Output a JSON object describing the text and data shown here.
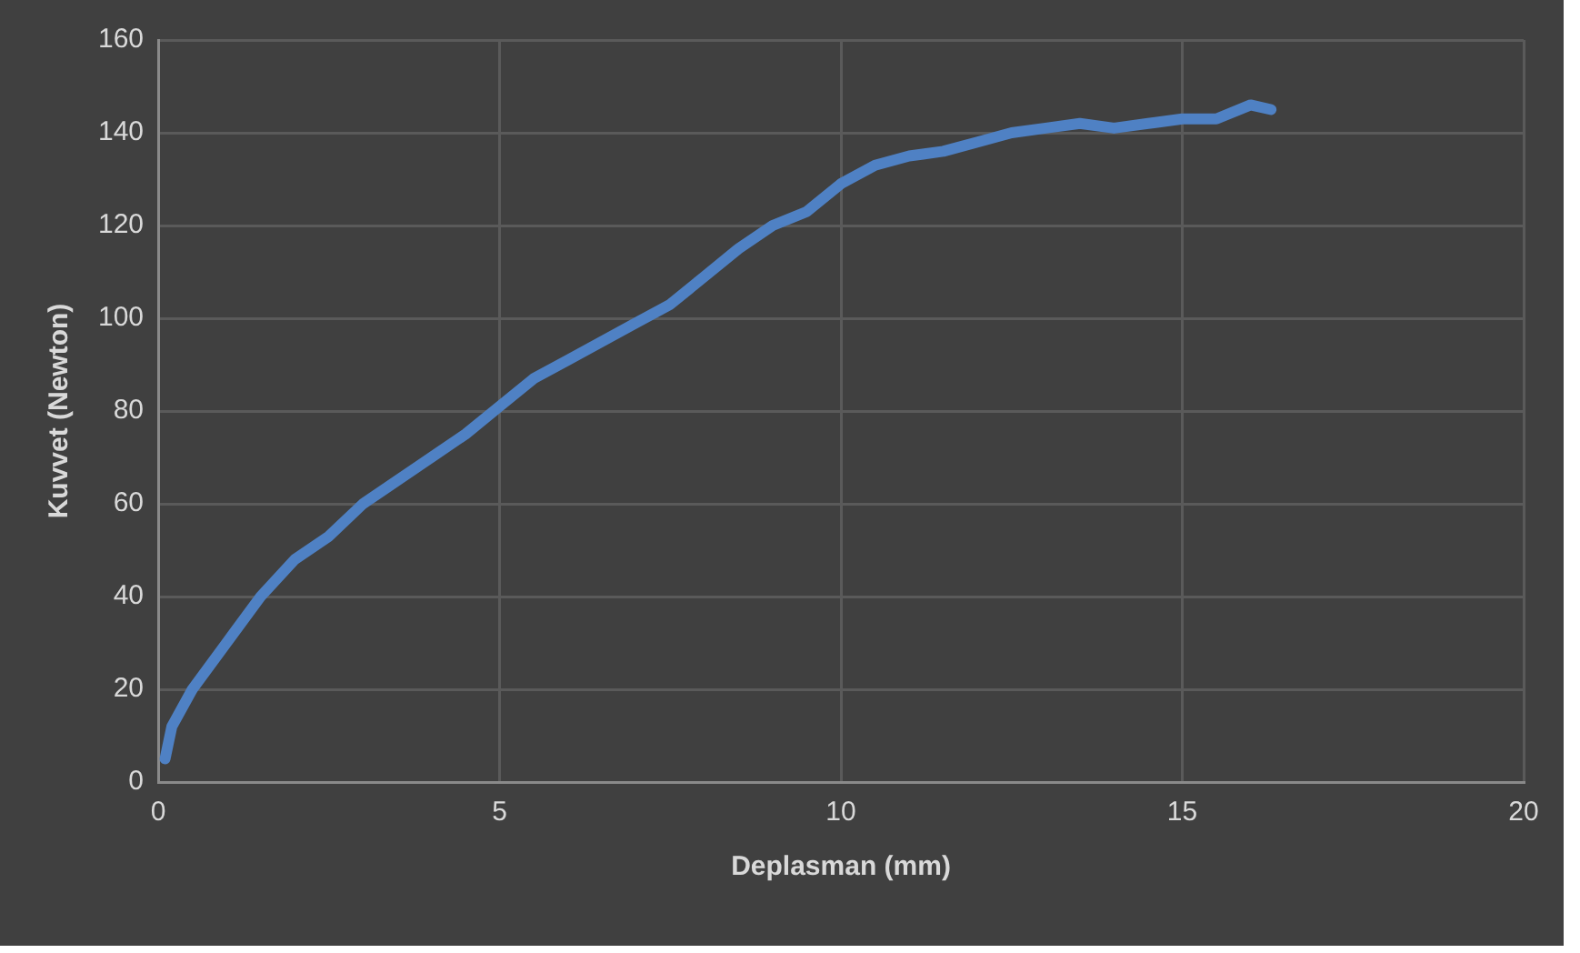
{
  "chart_data": {
    "type": "line",
    "xlabel": "Deplasman (mm)",
    "ylabel": "Kuvvet (Newton)",
    "xlim": [
      0,
      20
    ],
    "xticks": [
      0,
      5,
      10,
      15,
      20
    ],
    "ylim": [
      0,
      160
    ],
    "yticks": [
      0,
      20,
      40,
      60,
      80,
      100,
      120,
      140,
      160
    ],
    "grid": true,
    "marker": "none",
    "series": [
      {
        "color": "#4f81c4",
        "x": [
          0.1,
          0.2,
          0.5,
          1,
          1.5,
          2,
          2.5,
          3,
          3.5,
          4,
          4.5,
          5,
          5.5,
          6,
          6.5,
          7,
          7.5,
          8,
          8.5,
          9,
          9.5,
          10,
          10.5,
          11,
          11.5,
          12,
          12.5,
          13,
          13.5,
          14,
          14.5,
          15,
          15.5,
          16,
          16.3
        ],
        "values": [
          5,
          12,
          20,
          30,
          40,
          48,
          53,
          60,
          65,
          70,
          75,
          81,
          87,
          91,
          95,
          99,
          103,
          109,
          115,
          120,
          123,
          129,
          133,
          135,
          136,
          138,
          140,
          141,
          142,
          141,
          142,
          143,
          143,
          146,
          145
        ]
      }
    ]
  }
}
